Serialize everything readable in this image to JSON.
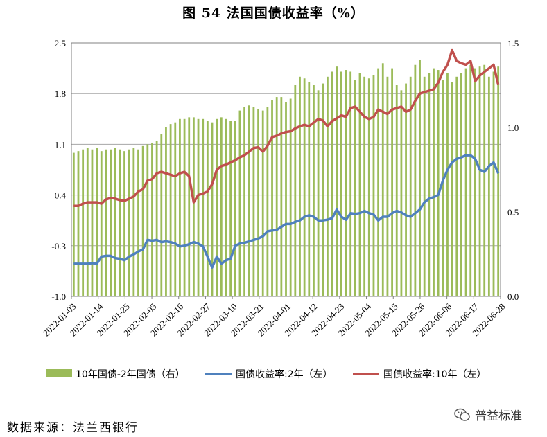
{
  "title": "图 54  法国国债收益率（%）",
  "source": "数据来源：法兰西银行",
  "watermark": "普益标准",
  "colors": {
    "bar": "#9bbb59",
    "two_year": "#4f81bd",
    "ten_year": "#c0504d",
    "grid": "#a6a6a6"
  },
  "chart_data": {
    "type": "bar+line",
    "title": "",
    "left_axis": {
      "min": -1.0,
      "max": 2.5,
      "ticks": [
        "2.5",
        "1.8",
        "1.1",
        "0.4",
        "-0.3",
        "-1.0"
      ],
      "tick_values": [
        2.5,
        1.8,
        1.1,
        0.4,
        -0.3,
        -1.0
      ]
    },
    "right_axis": {
      "min": 0.0,
      "max": 1.5,
      "ticks": [
        "1.5",
        "1.0",
        "0.5",
        "0.0"
      ],
      "tick_values": [
        1.5,
        1.0,
        0.5,
        0.0
      ]
    },
    "x_labels": [
      "2022-01-03",
      "2022-01-14",
      "2022-01-25",
      "2022-02-05",
      "2022-02-16",
      "2022-02-27",
      "2022-03-10",
      "2022-03-21",
      "2022-04-01",
      "2022-04-12",
      "2022-04-23",
      "2022-05-04",
      "2022-05-15",
      "2022-05-26",
      "2022-06-06",
      "2022-06-17",
      "2022-06-28"
    ],
    "legend": [
      "10年国债-2年国债（右）",
      "国债收益率:2年（左）",
      "国债收益率:10年（左）"
    ],
    "series": [
      {
        "name": "10年国债-2年国债（右）",
        "axis": "right",
        "type": "bar",
        "values": [
          0.85,
          0.86,
          0.87,
          0.88,
          0.87,
          0.88,
          0.86,
          0.87,
          0.87,
          0.88,
          0.87,
          0.86,
          0.87,
          0.88,
          0.87,
          0.89,
          0.9,
          0.91,
          0.92,
          0.96,
          1.0,
          1.02,
          1.03,
          1.05,
          1.05,
          1.06,
          1.06,
          1.05,
          1.05,
          1.04,
          1.03,
          1.05,
          1.06,
          1.05,
          1.04,
          1.04,
          1.1,
          1.12,
          1.13,
          1.12,
          1.11,
          1.1,
          1.12,
          1.16,
          1.18,
          1.18,
          1.15,
          1.17,
          1.25,
          1.3,
          1.29,
          1.27,
          1.25,
          1.22,
          1.26,
          1.3,
          1.33,
          1.36,
          1.33,
          1.34,
          1.33,
          1.28,
          1.32,
          1.3,
          1.29,
          1.31,
          1.35,
          1.38,
          1.3,
          1.35,
          1.25,
          1.22,
          1.26,
          1.3,
          1.37,
          1.4,
          1.3,
          1.32,
          1.35,
          1.34,
          1.28,
          1.32,
          1.27,
          1.3,
          1.32,
          1.35,
          1.37,
          1.35,
          1.36,
          1.37,
          1.3,
          1.33,
          1.36
        ]
      },
      {
        "name": "国债收益率:2年（左）",
        "axis": "left",
        "type": "line",
        "values": [
          -0.55,
          -0.55,
          -0.55,
          -0.55,
          -0.54,
          -0.55,
          -0.45,
          -0.44,
          -0.44,
          -0.47,
          -0.48,
          -0.5,
          -0.45,
          -0.42,
          -0.38,
          -0.35,
          -0.22,
          -0.23,
          -0.22,
          -0.25,
          -0.24,
          -0.25,
          -0.27,
          -0.31,
          -0.3,
          -0.28,
          -0.25,
          -0.27,
          -0.31,
          -0.45,
          -0.6,
          -0.45,
          -0.55,
          -0.5,
          -0.48,
          -0.3,
          -0.27,
          -0.26,
          -0.24,
          -0.22,
          -0.2,
          -0.17,
          -0.1,
          -0.09,
          -0.08,
          -0.04,
          0.0,
          0.0,
          0.03,
          0.05,
          0.1,
          0.12,
          0.1,
          0.05,
          0.05,
          0.06,
          0.08,
          0.2,
          0.1,
          0.06,
          0.15,
          0.14,
          0.15,
          0.18,
          0.15,
          0.13,
          0.05,
          0.1,
          0.1,
          0.15,
          0.18,
          0.16,
          0.12,
          0.1,
          0.15,
          0.2,
          0.3,
          0.35,
          0.37,
          0.4,
          0.6,
          0.75,
          0.85,
          0.9,
          0.92,
          0.95,
          0.95,
          0.9,
          0.75,
          0.72,
          0.8,
          0.85,
          0.7
        ]
      },
      {
        "name": "国债收益率:10年（左）",
        "axis": "left",
        "type": "line",
        "values": [
          0.25,
          0.25,
          0.28,
          0.3,
          0.3,
          0.3,
          0.28,
          0.34,
          0.36,
          0.35,
          0.33,
          0.32,
          0.35,
          0.38,
          0.45,
          0.48,
          0.6,
          0.62,
          0.7,
          0.72,
          0.7,
          0.68,
          0.66,
          0.7,
          0.72,
          0.66,
          0.3,
          0.4,
          0.42,
          0.45,
          0.55,
          0.75,
          0.8,
          0.82,
          0.85,
          0.88,
          0.92,
          0.95,
          1.0,
          1.05,
          1.06,
          1.0,
          1.08,
          1.2,
          1.22,
          1.25,
          1.27,
          1.28,
          1.32,
          1.35,
          1.37,
          1.35,
          1.4,
          1.45,
          1.43,
          1.35,
          1.42,
          1.46,
          1.5,
          1.48,
          1.6,
          1.62,
          1.55,
          1.48,
          1.45,
          1.48,
          1.58,
          1.55,
          1.52,
          1.58,
          1.6,
          1.62,
          1.55,
          1.58,
          1.7,
          1.8,
          1.82,
          1.84,
          1.86,
          1.95,
          2.1,
          2.2,
          2.4,
          2.25,
          2.22,
          2.2,
          2.25,
          1.97,
          2.05,
          2.1,
          2.15,
          2.2,
          1.92
        ]
      }
    ]
  }
}
